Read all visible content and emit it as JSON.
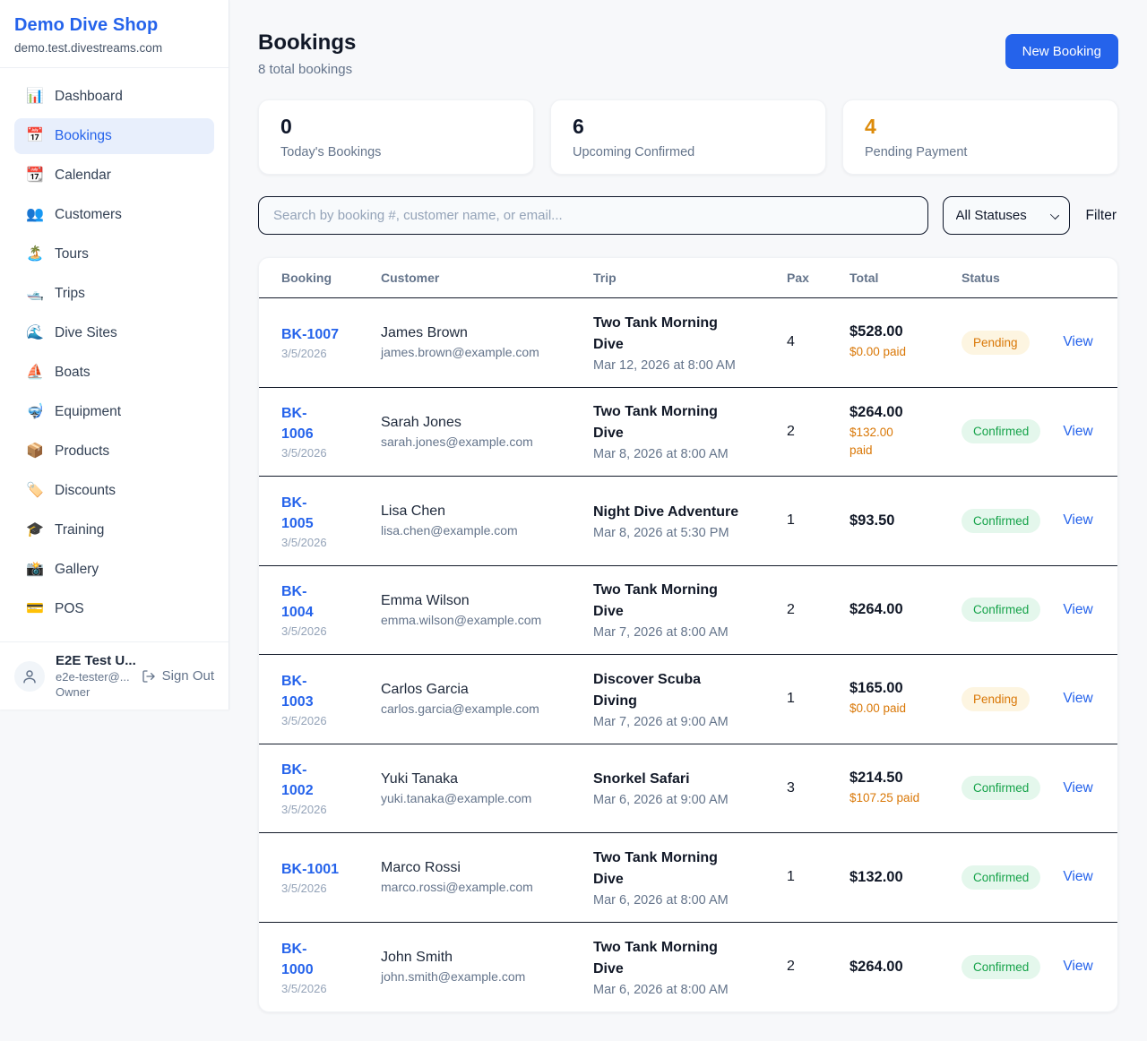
{
  "colors": {
    "accent_blue": "#2563eb",
    "orange": "#d97706",
    "pending_bg": "#fdf5e1",
    "pending_text": "#d97706",
    "confirmed_bg": "#e4f7ec",
    "confirmed_text": "#16a34a",
    "page_bg": "#f7f8fa"
  },
  "sidebar": {
    "brand": {
      "name": "Demo Dive Shop",
      "domain": "demo.test.divestreams.com"
    },
    "items": [
      {
        "icon": "📊",
        "icon_name": "bar-chart-icon",
        "label": "Dashboard",
        "active": false
      },
      {
        "icon": "📅",
        "icon_name": "calendar-icon",
        "label": "Bookings",
        "active": true
      },
      {
        "icon": "📆",
        "icon_name": "tear-off-calendar-icon",
        "label": "Calendar",
        "active": false
      },
      {
        "icon": "👥",
        "icon_name": "people-icon",
        "label": "Customers",
        "active": false
      },
      {
        "icon": "🏝️",
        "icon_name": "island-icon",
        "label": "Tours",
        "active": false
      },
      {
        "icon": "🛥️",
        "icon_name": "motorboat-icon",
        "label": "Trips",
        "active": false
      },
      {
        "icon": "🌊",
        "icon_name": "wave-icon",
        "label": "Dive Sites",
        "active": false
      },
      {
        "icon": "⛵",
        "icon_name": "sailboat-icon",
        "label": "Boats",
        "active": false
      },
      {
        "icon": "🤿",
        "icon_name": "diving-mask-icon",
        "label": "Equipment",
        "active": false
      },
      {
        "icon": "📦",
        "icon_name": "package-icon",
        "label": "Products",
        "active": false
      },
      {
        "icon": "🏷️",
        "icon_name": "tag-icon",
        "label": "Discounts",
        "active": false
      },
      {
        "icon": "🎓",
        "icon_name": "graduation-cap-icon",
        "label": "Training",
        "active": false
      },
      {
        "icon": "📸",
        "icon_name": "camera-icon",
        "label": "Gallery",
        "active": false
      },
      {
        "icon": "💳",
        "icon_name": "credit-card-icon",
        "label": "POS",
        "active": false
      }
    ],
    "user": {
      "name": "E2E Test U...",
      "email": "e2e-tester@...",
      "role": "Owner",
      "sign_out_label": "Sign Out"
    }
  },
  "header": {
    "title": "Bookings",
    "subtitle": "8 total bookings",
    "new_booking_label": "New Booking"
  },
  "stats": [
    {
      "value": "0",
      "label": "Today's Bookings",
      "accent": "dark"
    },
    {
      "value": "6",
      "label": "Upcoming Confirmed",
      "accent": "dark"
    },
    {
      "value": "4",
      "label": "Pending Payment",
      "accent": "orange"
    }
  ],
  "filters": {
    "search_placeholder": "Search by booking #, customer name, or email...",
    "status_selected": "All Statuses",
    "filter_label": "Filter"
  },
  "table": {
    "columns": [
      "Booking",
      "Customer",
      "Trip",
      "Pax",
      "Total",
      "Status"
    ],
    "rows": [
      {
        "id": "BK-1007",
        "date": "3/5/2026",
        "customer": "James Brown",
        "email": "james.brown@example.com",
        "trip": "Two Tank Morning\nDive",
        "trip_when": "Mar 12, 2026 at 8:00 AM",
        "pax": "4",
        "total": "$528.00",
        "paid": "$0.00 paid",
        "status": "Pending",
        "action": "View"
      },
      {
        "id": "BK-\n1006",
        "date": "3/5/2026",
        "customer": "Sarah Jones",
        "email": "sarah.jones@example.com",
        "trip": "Two Tank Morning\nDive",
        "trip_when": "Mar 8, 2026 at 8:00 AM",
        "pax": "2",
        "total": "$264.00",
        "paid": "$132.00\npaid",
        "status": "Confirmed",
        "action": "View"
      },
      {
        "id": "BK-\n1005",
        "date": "3/5/2026",
        "customer": "Lisa Chen",
        "email": "lisa.chen@example.com",
        "trip": "Night Dive Adventure",
        "trip_when": "Mar 8, 2026 at 5:30 PM",
        "pax": "1",
        "total": "$93.50",
        "paid": null,
        "status": "Confirmed",
        "action": "View"
      },
      {
        "id": "BK-\n1004",
        "date": "3/5/2026",
        "customer": "Emma Wilson",
        "email": "emma.wilson@example.com",
        "trip": "Two Tank Morning\nDive",
        "trip_when": "Mar 7, 2026 at 8:00 AM",
        "pax": "2",
        "total": "$264.00",
        "paid": null,
        "status": "Confirmed",
        "action": "View"
      },
      {
        "id": "BK-\n1003",
        "date": "3/5/2026",
        "customer": "Carlos Garcia",
        "email": "carlos.garcia@example.com",
        "trip": "Discover Scuba\nDiving",
        "trip_when": "Mar 7, 2026 at 9:00 AM",
        "pax": "1",
        "total": "$165.00",
        "paid": "$0.00 paid",
        "status": "Pending",
        "action": "View"
      },
      {
        "id": "BK-\n1002",
        "date": "3/5/2026",
        "customer": "Yuki Tanaka",
        "email": "yuki.tanaka@example.com",
        "trip": "Snorkel Safari",
        "trip_when": "Mar 6, 2026 at 9:00 AM",
        "pax": "3",
        "total": "$214.50",
        "paid": "$107.25 paid",
        "status": "Confirmed",
        "action": "View"
      },
      {
        "id": "BK-1001",
        "date": "3/5/2026",
        "customer": "Marco Rossi",
        "email": "marco.rossi@example.com",
        "trip": "Two Tank Morning\nDive",
        "trip_when": "Mar 6, 2026 at 8:00 AM",
        "pax": "1",
        "total": "$132.00",
        "paid": null,
        "status": "Confirmed",
        "action": "View"
      },
      {
        "id": "BK-\n1000",
        "date": "3/5/2026",
        "customer": "John Smith",
        "email": "john.smith@example.com",
        "trip": "Two Tank Morning\nDive",
        "trip_when": "Mar 6, 2026 at 8:00 AM",
        "pax": "2",
        "total": "$264.00",
        "paid": null,
        "status": "Confirmed",
        "action": "View"
      }
    ]
  }
}
